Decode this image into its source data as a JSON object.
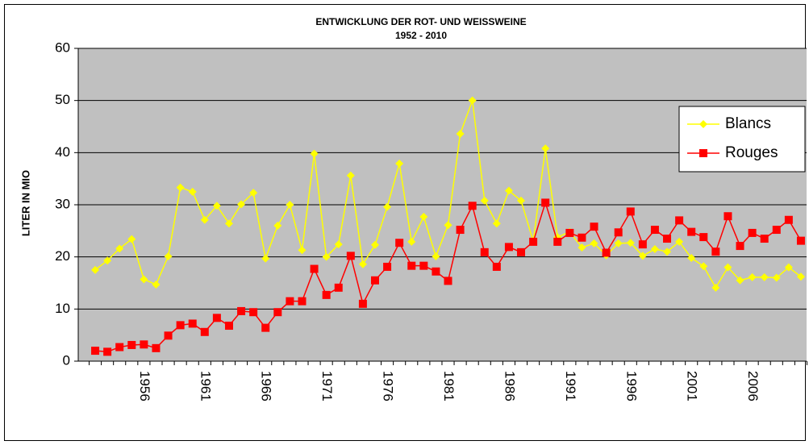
{
  "chart_data": {
    "type": "line",
    "title": "ENTWICKLUNG DER ROT- UND WEISSWEINE",
    "subtitle": "1952 - 2010",
    "y_label": "LITER IN MIO",
    "categories": [
      null,
      null,
      null,
      null,
      "1956",
      null,
      null,
      null,
      null,
      "1961",
      null,
      null,
      null,
      null,
      "1966",
      null,
      null,
      null,
      null,
      "1971",
      null,
      null,
      null,
      null,
      "1976",
      null,
      null,
      null,
      null,
      "1981",
      null,
      null,
      null,
      null,
      "1986",
      null,
      null,
      null,
      null,
      "1991",
      null,
      null,
      null,
      null,
      "1996",
      null,
      null,
      null,
      null,
      "2001",
      null,
      null,
      null,
      null,
      "2006",
      null,
      null,
      null,
      null
    ],
    "series": [
      {
        "name": "Blancs",
        "color": "#ffff00",
        "marker": "diamond",
        "values": [
          17.5,
          19.3,
          21.6,
          23.4,
          15.7,
          14.7,
          20.1,
          33.3,
          32.5,
          27.1,
          29.8,
          26.4,
          30.1,
          32.3,
          19.7,
          26.0,
          30.0,
          21.3,
          39.8,
          20.0,
          22.4,
          35.6,
          18.6,
          22.3,
          29.6,
          37.9,
          22.9,
          27.7,
          20.1,
          26.1,
          43.6,
          50.0,
          30.8,
          26.4,
          32.7,
          30.8,
          23.0,
          40.8,
          23.8,
          24.8,
          21.8,
          22.6,
          20.3,
          22.6,
          22.7,
          20.2,
          21.5,
          21.0,
          22.9,
          19.8,
          18.2,
          14.1,
          18.0,
          15.5,
          16.1,
          16.1,
          16.0,
          18.0,
          16.2
        ]
      },
      {
        "name": "Rouges",
        "color": "#ff0000",
        "marker": "square",
        "values": [
          2.0,
          1.8,
          2.7,
          3.1,
          3.2,
          2.5,
          4.9,
          6.9,
          7.2,
          5.6,
          8.3,
          6.8,
          9.6,
          9.4,
          6.4,
          9.4,
          11.5,
          11.5,
          17.7,
          12.7,
          14.1,
          20.2,
          11.0,
          15.5,
          18.1,
          22.7,
          18.3,
          18.3,
          17.2,
          15.4,
          25.2,
          29.8,
          20.9,
          18.1,
          21.9,
          20.9,
          22.9,
          30.4,
          22.9,
          24.6,
          23.7,
          25.8,
          20.8,
          24.7,
          28.7,
          22.4,
          25.2,
          23.5,
          27.0,
          24.8,
          23.8,
          21.0,
          27.8,
          22.1,
          24.6,
          23.5,
          25.2,
          27.1,
          23.1
        ]
      }
    ],
    "ylim": [
      0,
      60
    ],
    "yticks": [
      0,
      10,
      20,
      30,
      40,
      50,
      60
    ],
    "grid": true,
    "plot_background": "#c0c0c0",
    "legend": "right"
  }
}
